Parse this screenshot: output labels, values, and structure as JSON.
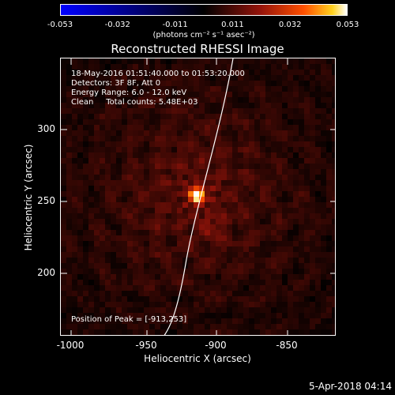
{
  "colorbar": {
    "ticks": [
      "-0.053",
      "-0.032",
      "-0.011",
      "0.011",
      "0.032",
      "0.053"
    ],
    "units": "(photons cm⁻² s⁻¹ asec⁻²)"
  },
  "title": "Reconstructed RHESSI Image",
  "info": {
    "time": "18-May-2016 01:51:40.000 to 01:53:20.000",
    "detectors": "Detectors: 3F 8F, Att 0",
    "energy": "Energy Range: 6.0 - 12.0 keV",
    "clean": "Clean     Total counts: 5.48E+03",
    "peak": "Position of Peak = [-913,253]"
  },
  "axes": {
    "xlabel": "Heliocentric X (arcsec)",
    "ylabel": "Heliocentric Y (arcsec)",
    "xticks": [
      "-1000",
      "-950",
      "-900",
      "-850"
    ],
    "yticks": [
      "300",
      "250",
      "200"
    ]
  },
  "footer": "5-Apr-2018 04:14"
}
